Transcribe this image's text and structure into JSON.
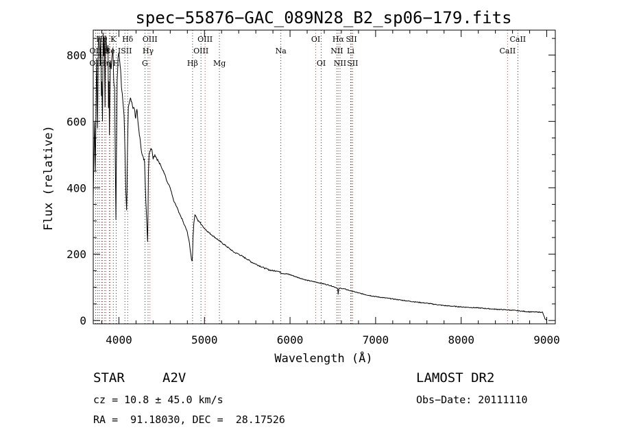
{
  "chart_data": {
    "type": "line",
    "title": "spec−55876−GAC_089N28_B2_sp06−179.fits",
    "xlabel": "Wavelength (Å)",
    "ylabel": "Flux (relative)",
    "xlim": [
      3700,
      9100
    ],
    "ylim": [
      -10,
      875
    ],
    "xticks": [
      4000,
      5000,
      6000,
      7000,
      8000,
      9000
    ],
    "yticks": [
      0,
      200,
      400,
      600,
      800
    ],
    "grid": false,
    "series": [
      {
        "x": [
          3700,
          3715,
          3725,
          3735,
          3742,
          3750,
          3760,
          3770,
          3780,
          3788,
          3795,
          3800,
          3808,
          3815,
          3822,
          3830,
          3838,
          3845,
          3852,
          3860,
          3866,
          3872,
          3878,
          3884,
          3889,
          3895,
          3900,
          3910,
          3920,
          3930,
          3940,
          3950,
          3958,
          3965,
          3970,
          3975,
          3980,
          3990,
          4000,
          4010,
          4020,
          4030,
          4040,
          4050,
          4060,
          4070,
          4080,
          4090,
          4095,
          4100,
          4105,
          4110,
          4120,
          4135,
          4150,
          4165,
          4180,
          4195,
          4210,
          4225,
          4240,
          4255,
          4270,
          4285,
          4300,
          4315,
          4325,
          4335,
          4340,
          4345,
          4352,
          4360,
          4375,
          4390,
          4400,
          4420,
          4440,
          4460,
          4480,
          4500,
          4520,
          4540,
          4560,
          4580,
          4600,
          4620,
          4640,
          4660,
          4680,
          4700,
          4720,
          4740,
          4760,
          4780,
          4800,
          4820,
          4835,
          4848,
          4856,
          4861,
          4866,
          4875,
          4888,
          4900,
          4925,
          4950,
          4975,
          5000,
          5050,
          5100,
          5150,
          5200,
          5250,
          5300,
          5350,
          5400,
          5450,
          5500,
          5550,
          5600,
          5650,
          5700,
          5750,
          5800,
          5850,
          5900,
          5950,
          6000,
          6100,
          6200,
          6300,
          6400,
          6450,
          6500,
          6530,
          6550,
          6558,
          6563,
          6568,
          6578,
          6600,
          6650,
          6700,
          6800,
          6900,
          7000,
          7200,
          7400,
          7600,
          7800,
          8000,
          8200,
          8400,
          8600,
          8800,
          8950,
          8980,
          9000
        ],
        "y": [
          370,
          600,
          450,
          700,
          790,
          580,
          840,
          860,
          780,
          850,
          680,
          720,
          600,
          870,
          800,
          850,
          640,
          860,
          840,
          800,
          820,
          830,
          640,
          720,
          560,
          680,
          780,
          760,
          800,
          820,
          720,
          700,
          480,
          300,
          470,
          590,
          720,
          790,
          810,
          780,
          760,
          700,
          680,
          650,
          620,
          520,
          400,
          330,
          390,
          510,
          580,
          640,
          650,
          670,
          660,
          640,
          640,
          610,
          640,
          590,
          560,
          530,
          500,
          490,
          480,
          360,
          300,
          240,
          320,
          450,
          500,
          510,
          520,
          510,
          490,
          500,
          490,
          480,
          470,
          460,
          450,
          440,
          420,
          410,
          400,
          380,
          360,
          350,
          340,
          325,
          315,
          305,
          290,
          280,
          265,
          240,
          210,
          185,
          180,
          200,
          250,
          290,
          320,
          315,
          300,
          295,
          285,
          278,
          265,
          255,
          245,
          235,
          225,
          215,
          205,
          200,
          192,
          185,
          176,
          170,
          164,
          158,
          153,
          150,
          150,
          143,
          141,
          138,
          129,
          121,
          116,
          110,
          107,
          103,
          100,
          98,
          95,
          78,
          93,
          97,
          97,
          94,
          90,
          83,
          77,
          72,
          65,
          58,
          52,
          45,
          41,
          38,
          34,
          31,
          26,
          25,
          5,
          0
        ]
      }
    ],
    "line_markers": [
      {
        "label": "Hθ",
        "x": 3798,
        "row": 1,
        "color": "#000000"
      },
      {
        "label": "K",
        "x": 3934,
        "row": 1,
        "color": "#000000"
      },
      {
        "label": "Hδ",
        "x": 4102,
        "row": 1,
        "color": "#000000"
      },
      {
        "label": "OIII",
        "x": 4363,
        "row": 1,
        "color": "#000000"
      },
      {
        "label": "OIII",
        "x": 5007,
        "row": 1,
        "color": "#000000"
      },
      {
        "label": "OI",
        "x": 6300,
        "row": 1,
        "color": "#000000"
      },
      {
        "label": "Hα",
        "x": 6563,
        "row": 1,
        "color": "#000000"
      },
      {
        "label": "SII",
        "x": 6717,
        "row": 1,
        "color": "#000000"
      },
      {
        "label": "CaII",
        "x": 8662,
        "row": 1,
        "color": "#000000"
      },
      {
        "label": "OII",
        "x": 3727,
        "row": 2,
        "color": "#000000"
      },
      {
        "label": "He",
        "x": 3889,
        "row": 2,
        "color": "#000000"
      },
      {
        "label": "ISII",
        "x": 4070,
        "row": 2,
        "color": "#000000"
      },
      {
        "label": "Hγ",
        "x": 4341,
        "row": 2,
        "color": "#000000"
      },
      {
        "label": "OIII",
        "x": 4959,
        "row": 2,
        "color": "#000000"
      },
      {
        "label": "Na",
        "x": 5893,
        "row": 2,
        "color": "#000000"
      },
      {
        "label": "NII",
        "x": 6548,
        "row": 2,
        "color": "#000000"
      },
      {
        "label": "Li",
        "x": 6708,
        "row": 2,
        "color": "#000000"
      },
      {
        "label": "CaII",
        "x": 8542,
        "row": 2,
        "color": "#000000"
      },
      {
        "label": "OII",
        "x": 3727,
        "row": 3,
        "color": "#000000"
      },
      {
        "label": "Hη",
        "x": 3835,
        "row": 3,
        "color": "#000000"
      },
      {
        "label": "H",
        "x": 3968,
        "row": 3,
        "color": "#000000"
      },
      {
        "label": "G",
        "x": 4304,
        "row": 3,
        "color": "#000000"
      },
      {
        "label": "Hβ",
        "x": 4861,
        "row": 3,
        "color": "#000000"
      },
      {
        "label": "Mg",
        "x": 5175,
        "row": 3,
        "color": "#000000"
      },
      {
        "label": "OI",
        "x": 6364,
        "row": 3,
        "color": "#000000"
      },
      {
        "label": "NII",
        "x": 6584,
        "row": 3,
        "color": "#000000"
      },
      {
        "label": "SII",
        "x": 6731,
        "row": 3,
        "color": "#000000"
      }
    ],
    "dotted_lines_black": [
      3727,
      3750,
      3771,
      3798,
      3835,
      3889,
      3934,
      3968,
      4070,
      4102,
      4304,
      4341,
      4861,
      4959,
      5175,
      5893,
      6364,
      6548,
      6584,
      6708,
      6731,
      8662
    ],
    "dotted_lines_red": [
      3700,
      3810,
      3850,
      3900,
      4363,
      5007,
      6300,
      6563,
      6717,
      8542
    ]
  },
  "info": {
    "class_label": "STAR",
    "subclass": "A2V",
    "survey": "LAMOST DR2",
    "cz": "cz = 10.8 ± 45.0 km/s",
    "obs_date": "Obs−Date: 20111110",
    "radec": "RA =  91.18030, DEC =  28.17526"
  }
}
